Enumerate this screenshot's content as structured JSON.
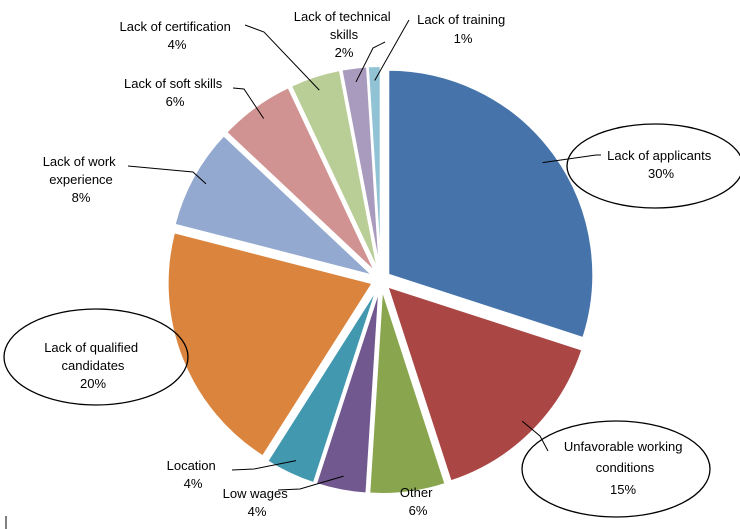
{
  "chart_data": {
    "type": "pie",
    "title": "",
    "slices": [
      {
        "label": "Lack of applicants",
        "display": "30%",
        "value": 30,
        "color": "#4674AA",
        "highlight": true
      },
      {
        "label": "Unfavorable working conditions",
        "display": "15%",
        "value": 15,
        "color": "#AA4644",
        "highlight": true
      },
      {
        "label": "Other",
        "display": "6%",
        "value": 6,
        "color": "#89A54E",
        "highlight": false
      },
      {
        "label": "Low wages",
        "display": "4%",
        "value": 4,
        "color": "#71588F",
        "highlight": false
      },
      {
        "label": "Location",
        "display": "4%",
        "value": 4,
        "color": "#4198AF",
        "highlight": false
      },
      {
        "label": "Lack of qualified candidates",
        "display": "20%",
        "value": 20,
        "color": "#DB843D",
        "highlight": true
      },
      {
        "label": "Lack of work experience",
        "display": "8%",
        "value": 8,
        "color": "#93A9CF",
        "highlight": false
      },
      {
        "label": "Lack of soft skills",
        "display": "6%",
        "value": 6,
        "color": "#D19392",
        "highlight": false
      },
      {
        "label": "Lack of certification",
        "display": "4%",
        "value": 4,
        "color": "#B9CD96",
        "highlight": false
      },
      {
        "label": "Lack of technical skills",
        "display": "2%",
        "value": 2,
        "color": "#A99BBD",
        "highlight": false
      },
      {
        "label": "Lack of training",
        "display": "1%",
        "value": 1,
        "color": "#91C3D5",
        "highlight": false
      }
    ]
  }
}
